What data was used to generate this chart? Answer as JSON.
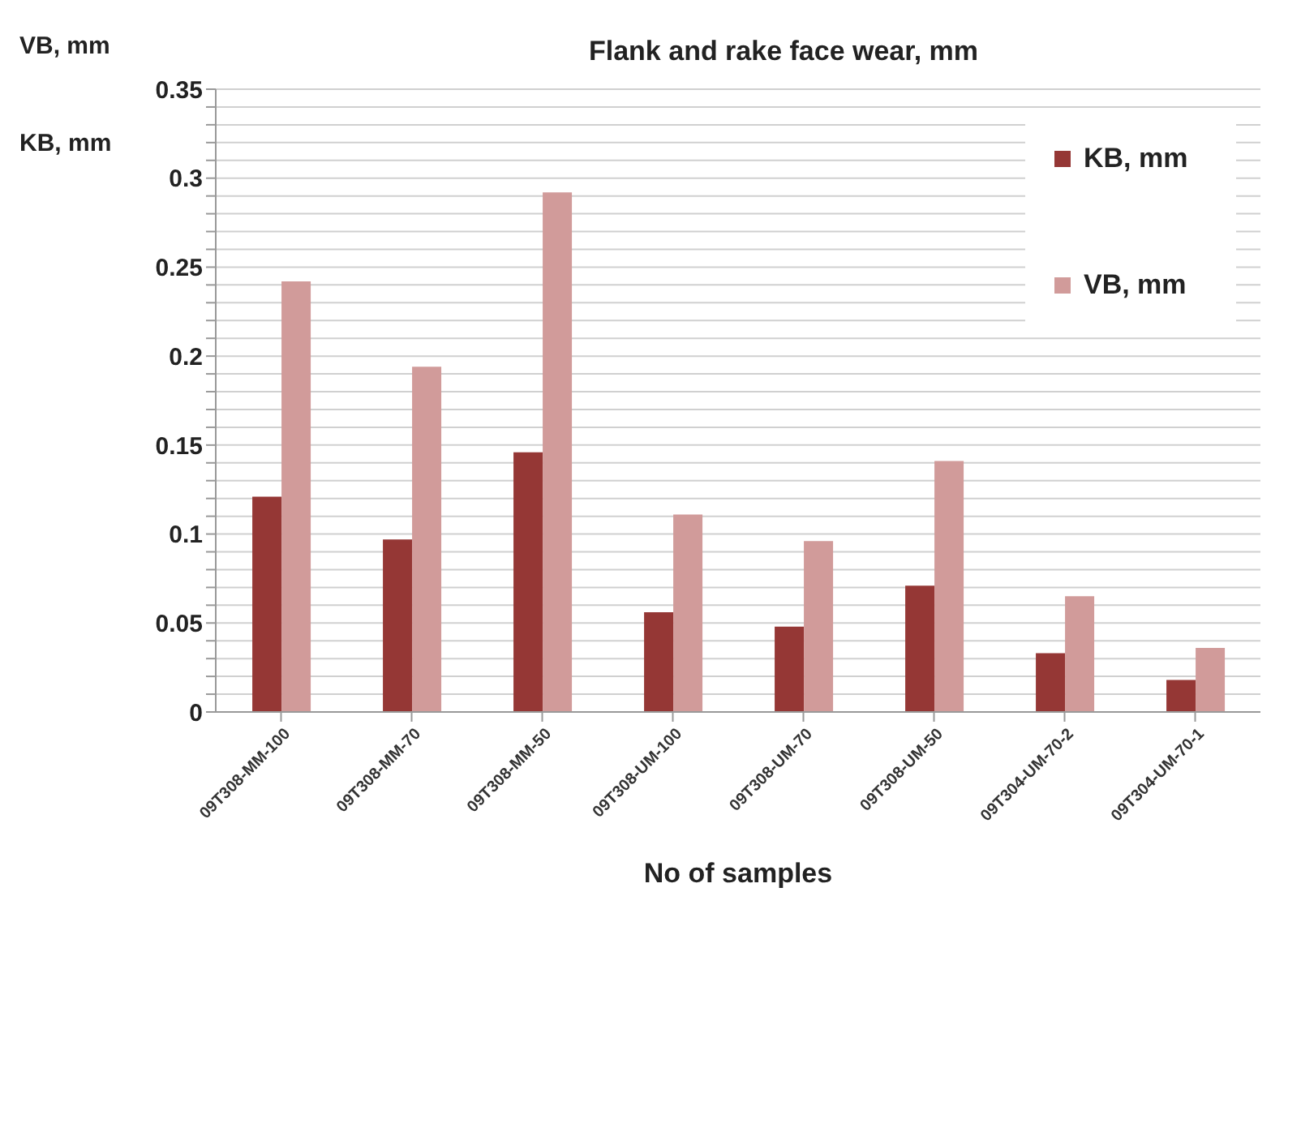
{
  "chart_data": {
    "type": "bar",
    "title": "Flank and rake face wear, mm",
    "xlabel": "No of samples",
    "ylabel": "VB, mm",
    "annotations": [
      "KB, mm"
    ],
    "categories": [
      "09T308-MM-100",
      "09T308-MM-70",
      "09T308-MM-50",
      "09T308-UM-100",
      "09T308-UM-70",
      "09T308-UM-50",
      "09T304-UM-70-2",
      "09T304-UM-70-1"
    ],
    "series": [
      {
        "name": "KB, mm",
        "color": "#953735",
        "values": [
          0.121,
          0.097,
          0.146,
          0.056,
          0.048,
          0.071,
          0.033,
          0.018
        ]
      },
      {
        "name": "VB, mm",
        "color": "#d19b9a",
        "values": [
          0.242,
          0.194,
          0.292,
          0.111,
          0.096,
          0.141,
          0.065,
          0.036
        ]
      }
    ],
    "ylim": [
      0,
      0.35
    ],
    "yticks": [
      0,
      {
        "value": 0.01,
        "label": null
      },
      {
        "value": 0.02,
        "label": null
      },
      {
        "value": 0.03,
        "label": null
      },
      {
        "value": 0.04,
        "label": null
      },
      0.05,
      {
        "value": 0.06,
        "label": null
      },
      {
        "value": 0.07,
        "label": null
      },
      {
        "value": 0.08,
        "label": null
      },
      {
        "value": 0.09,
        "label": null
      },
      0.1,
      {
        "value": 0.11,
        "label": null
      },
      {
        "value": 0.12,
        "label": null
      },
      {
        "value": 0.13,
        "label": null
      },
      {
        "value": 0.14,
        "label": null
      },
      0.15,
      {
        "value": 0.16,
        "label": null
      },
      {
        "value": 0.17,
        "label": null
      },
      {
        "value": 0.18,
        "label": null
      },
      {
        "value": 0.19,
        "label": null
      },
      0.2,
      {
        "value": 0.21,
        "label": null
      },
      {
        "value": 0.22,
        "label": null
      },
      {
        "value": 0.23,
        "label": null
      },
      {
        "value": 0.24,
        "label": null
      },
      0.25,
      {
        "value": 0.26,
        "label": null
      },
      {
        "value": 0.27,
        "label": null
      },
      {
        "value": 0.28,
        "label": null
      },
      {
        "value": 0.29,
        "label": null
      },
      0.3,
      {
        "value": 0.31,
        "label": null
      },
      {
        "value": 0.32,
        "label": null
      },
      {
        "value": 0.33,
        "label": null
      },
      {
        "value": 0.34,
        "label": null
      },
      0.35
    ],
    "grid": "y",
    "legend": "top right"
  }
}
